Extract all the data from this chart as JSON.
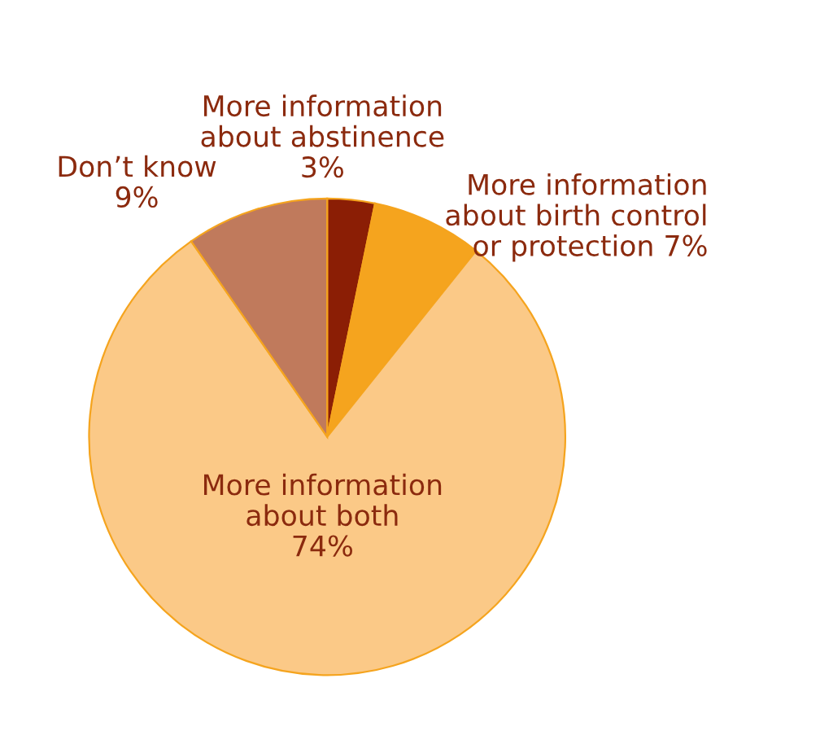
{
  "chart_data": {
    "type": "pie",
    "categories": [
      "More information\nabout abstinence",
      "More information\nabout birth control\nor protection",
      "More information\nabout both",
      "Don’t know"
    ],
    "values": [
      3,
      7,
      74,
      9
    ],
    "value_labels": [
      "3%",
      "7%",
      "74%",
      "9%"
    ],
    "colors": [
      "#8b1e05",
      "#f5a41e",
      "#fbc987",
      "#c07a5c"
    ]
  }
}
